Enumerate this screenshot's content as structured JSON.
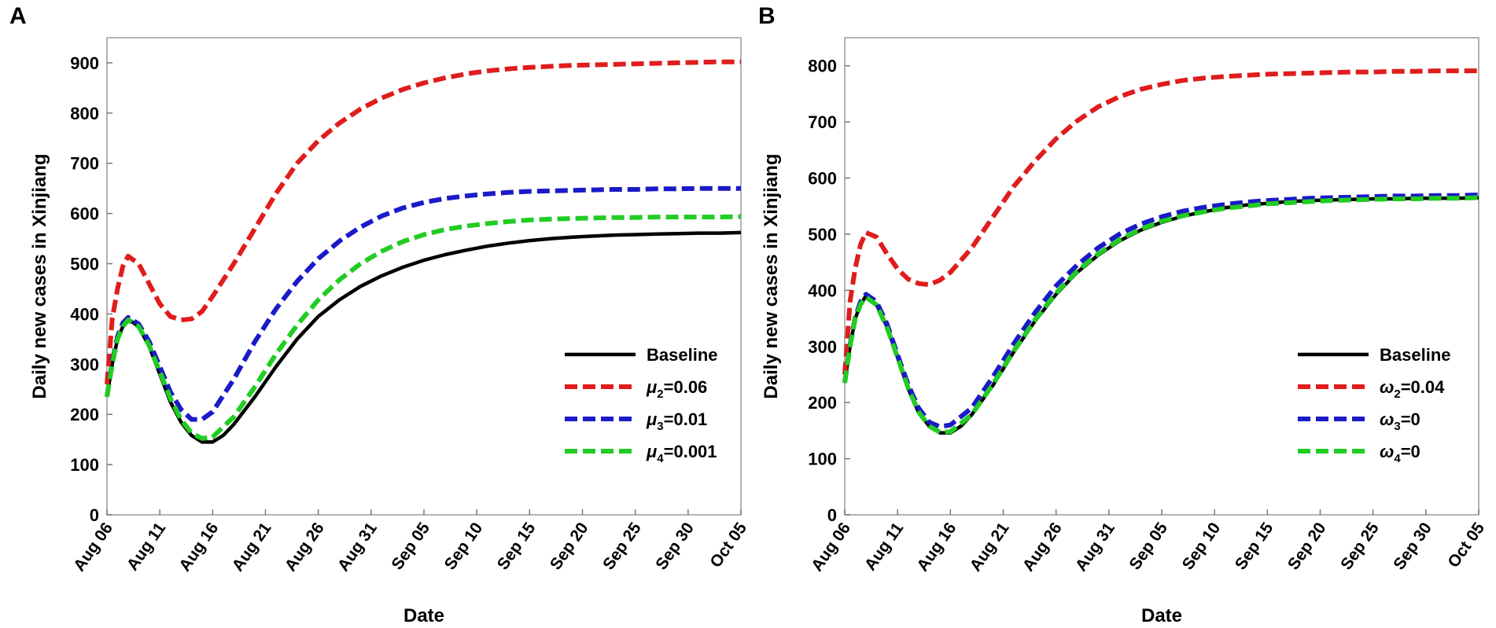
{
  "chart_data": [
    {
      "panel_label": "A",
      "type": "line",
      "xlabel": "Date",
      "ylabel": "Daily new cases in Xinjiang",
      "xlim": [
        0,
        60
      ],
      "ylim": [
        0,
        950
      ],
      "yticks": [
        0,
        100,
        200,
        300,
        400,
        500,
        600,
        700,
        800,
        900
      ],
      "xtick_values": [
        0,
        5,
        10,
        15,
        20,
        25,
        30,
        35,
        40,
        45,
        50,
        55,
        60
      ],
      "xtick_labels": [
        "Aug 06",
        "Aug 11",
        "Aug 16",
        "Aug 21",
        "Aug 26",
        "Aug 31",
        "Sep 05",
        "Sep 10",
        "Sep 15",
        "Sep 20",
        "Sep 25",
        "Sep 30",
        "Oct 05"
      ],
      "legend_position": "right",
      "series": [
        {
          "name": "Baseline",
          "sym": "",
          "sub": "",
          "val": "",
          "color": "#000000",
          "dashed": false,
          "x": [
            0,
            0.5,
            1,
            1.5,
            2,
            3,
            4,
            5,
            6,
            7,
            8,
            9,
            10,
            11,
            12,
            14,
            16,
            18,
            20,
            22,
            24,
            26,
            28,
            30,
            32,
            34,
            36,
            38,
            40,
            42,
            44,
            46,
            48,
            50,
            52,
            54,
            56,
            58,
            60
          ],
          "y": [
            235,
            300,
            350,
            375,
            390,
            375,
            335,
            280,
            225,
            185,
            158,
            145,
            145,
            158,
            180,
            235,
            295,
            350,
            395,
            428,
            455,
            476,
            493,
            507,
            518,
            527,
            535,
            541,
            546,
            550,
            553,
            555,
            557,
            558,
            559,
            560,
            561,
            561,
            562
          ]
        },
        {
          "name": "μ2=0.06",
          "sym": "μ",
          "sub": "2",
          "val": "=0.06",
          "color": "#e01c1c",
          "dashed": true,
          "x": [
            0,
            0.5,
            1,
            1.5,
            2,
            3,
            4,
            5,
            6,
            7,
            8,
            9,
            10,
            12,
            14,
            16,
            18,
            20,
            22,
            24,
            26,
            28,
            30,
            32,
            34,
            36,
            38,
            40,
            42,
            44,
            46,
            48,
            50,
            52,
            54,
            56,
            58,
            60
          ],
          "y": [
            260,
            390,
            450,
            495,
            515,
            500,
            460,
            420,
            395,
            388,
            390,
            405,
            435,
            500,
            570,
            640,
            700,
            745,
            780,
            808,
            830,
            847,
            860,
            870,
            878,
            884,
            888,
            891,
            893,
            895,
            896,
            897,
            898,
            899,
            900,
            901,
            902,
            902
          ]
        },
        {
          "name": "μ3=0.01",
          "sym": "μ",
          "sub": "3",
          "val": "=0.01",
          "color": "#1a1ac8",
          "dashed": true,
          "x": [
            0,
            0.5,
            1,
            1.5,
            2,
            3,
            4,
            5,
            6,
            7,
            8,
            9,
            10,
            12,
            14,
            16,
            18,
            20,
            22,
            24,
            26,
            28,
            30,
            32,
            34,
            36,
            38,
            40,
            42,
            44,
            46,
            48,
            50,
            52,
            54,
            56,
            58,
            60
          ],
          "y": [
            235,
            305,
            355,
            382,
            393,
            380,
            345,
            295,
            245,
            210,
            190,
            190,
            205,
            270,
            345,
            410,
            465,
            510,
            545,
            573,
            595,
            611,
            622,
            630,
            635,
            639,
            642,
            644,
            645,
            646,
            647,
            648,
            648,
            649,
            649,
            650,
            650,
            650
          ]
        },
        {
          "name": "μ4=0.001",
          "sym": "μ",
          "sub": "4",
          "val": "=0.001",
          "color": "#22cc22",
          "dashed": true,
          "x": [
            0,
            0.5,
            1,
            1.5,
            2,
            3,
            4,
            5,
            6,
            7,
            8,
            9,
            10,
            12,
            14,
            16,
            18,
            20,
            22,
            24,
            26,
            28,
            30,
            32,
            34,
            36,
            38,
            40,
            42,
            44,
            46,
            48,
            50,
            52,
            54,
            56,
            58,
            60
          ],
          "y": [
            235,
            300,
            350,
            375,
            388,
            375,
            337,
            285,
            232,
            190,
            163,
            152,
            155,
            195,
            255,
            320,
            378,
            428,
            468,
            500,
            525,
            544,
            558,
            568,
            575,
            580,
            584,
            587,
            589,
            590,
            591,
            592,
            592,
            593,
            593,
            593,
            593,
            594
          ]
        }
      ]
    },
    {
      "panel_label": "B",
      "type": "line",
      "xlabel": "Date",
      "ylabel": "Daily new cases in Xinjiang",
      "xlim": [
        0,
        60
      ],
      "ylim": [
        0,
        850
      ],
      "yticks": [
        0,
        100,
        200,
        300,
        400,
        500,
        600,
        700,
        800
      ],
      "xtick_values": [
        0,
        5,
        10,
        15,
        20,
        25,
        30,
        35,
        40,
        45,
        50,
        55,
        60
      ],
      "xtick_labels": [
        "Aug 06",
        "Aug 11",
        "Aug 16",
        "Aug 21",
        "Aug 26",
        "Aug 31",
        "Sep 05",
        "Sep 10",
        "Sep 15",
        "Sep 20",
        "Sep 25",
        "Sep 30",
        "Oct 05"
      ],
      "legend_position": "right",
      "series": [
        {
          "name": "Baseline",
          "sym": "",
          "sub": "",
          "val": "",
          "color": "#000000",
          "dashed": false,
          "x": [
            0,
            0.5,
            1,
            1.5,
            2,
            3,
            4,
            5,
            6,
            7,
            8,
            9,
            10,
            11,
            12,
            14,
            16,
            18,
            20,
            22,
            24,
            26,
            28,
            30,
            32,
            34,
            36,
            38,
            40,
            42,
            44,
            46,
            48,
            50,
            52,
            54,
            56,
            58,
            60
          ],
          "y": [
            235,
            300,
            350,
            375,
            390,
            375,
            335,
            280,
            225,
            182,
            158,
            146,
            146,
            158,
            178,
            230,
            290,
            345,
            393,
            432,
            463,
            488,
            507,
            521,
            532,
            540,
            547,
            552,
            555,
            558,
            560,
            561,
            562,
            563,
            563,
            564,
            564,
            564,
            565
          ]
        },
        {
          "name": "ω2=0.04",
          "sym": "ω",
          "sub": "2",
          "val": "=0.04",
          "color": "#e01c1c",
          "dashed": true,
          "x": [
            0,
            0.5,
            1,
            1.5,
            2,
            3,
            4,
            5,
            6,
            7,
            8,
            9,
            10,
            12,
            14,
            16,
            18,
            20,
            22,
            24,
            26,
            28,
            30,
            32,
            34,
            36,
            38,
            40,
            42,
            44,
            46,
            48,
            50,
            52,
            54,
            56,
            58,
            60
          ],
          "y": [
            250,
            380,
            440,
            482,
            503,
            495,
            465,
            438,
            420,
            412,
            410,
            418,
            432,
            475,
            530,
            585,
            630,
            670,
            702,
            727,
            745,
            758,
            767,
            774,
            778,
            781,
            783,
            785,
            786,
            787,
            788,
            789,
            789,
            790,
            790,
            791,
            791,
            791
          ]
        },
        {
          "name": "ω3=0",
          "sym": "ω",
          "sub": "3",
          "val": "=0",
          "color": "#1a1ac8",
          "dashed": true,
          "x": [
            0,
            0.5,
            1,
            1.5,
            2,
            3,
            4,
            5,
            6,
            7,
            8,
            9,
            10,
            12,
            14,
            16,
            18,
            20,
            22,
            24,
            26,
            28,
            30,
            32,
            34,
            36,
            38,
            40,
            42,
            44,
            46,
            48,
            50,
            52,
            54,
            56,
            58,
            60
          ],
          "y": [
            235,
            303,
            352,
            380,
            393,
            380,
            340,
            285,
            232,
            190,
            165,
            157,
            160,
            190,
            245,
            305,
            360,
            408,
            445,
            476,
            500,
            518,
            531,
            541,
            548,
            553,
            557,
            560,
            562,
            564,
            565,
            566,
            567,
            568,
            568,
            569,
            569,
            570
          ]
        },
        {
          "name": "ω4=0",
          "sym": "ω",
          "sub": "4",
          "val": "=0",
          "color": "#22cc22",
          "dashed": true,
          "x": [
            0,
            0.5,
            1,
            1.5,
            2,
            3,
            4,
            5,
            6,
            7,
            8,
            9,
            10,
            12,
            14,
            16,
            18,
            20,
            22,
            24,
            26,
            28,
            30,
            32,
            34,
            36,
            38,
            40,
            42,
            44,
            46,
            48,
            50,
            52,
            54,
            56,
            58,
            60
          ],
          "y": [
            235,
            300,
            350,
            375,
            388,
            374,
            334,
            280,
            226,
            183,
            158,
            147,
            148,
            178,
            232,
            292,
            347,
            395,
            434,
            465,
            490,
            509,
            523,
            533,
            540,
            546,
            550,
            554,
            556,
            558,
            560,
            561,
            562,
            563,
            563,
            564,
            564,
            565
          ]
        }
      ]
    }
  ]
}
